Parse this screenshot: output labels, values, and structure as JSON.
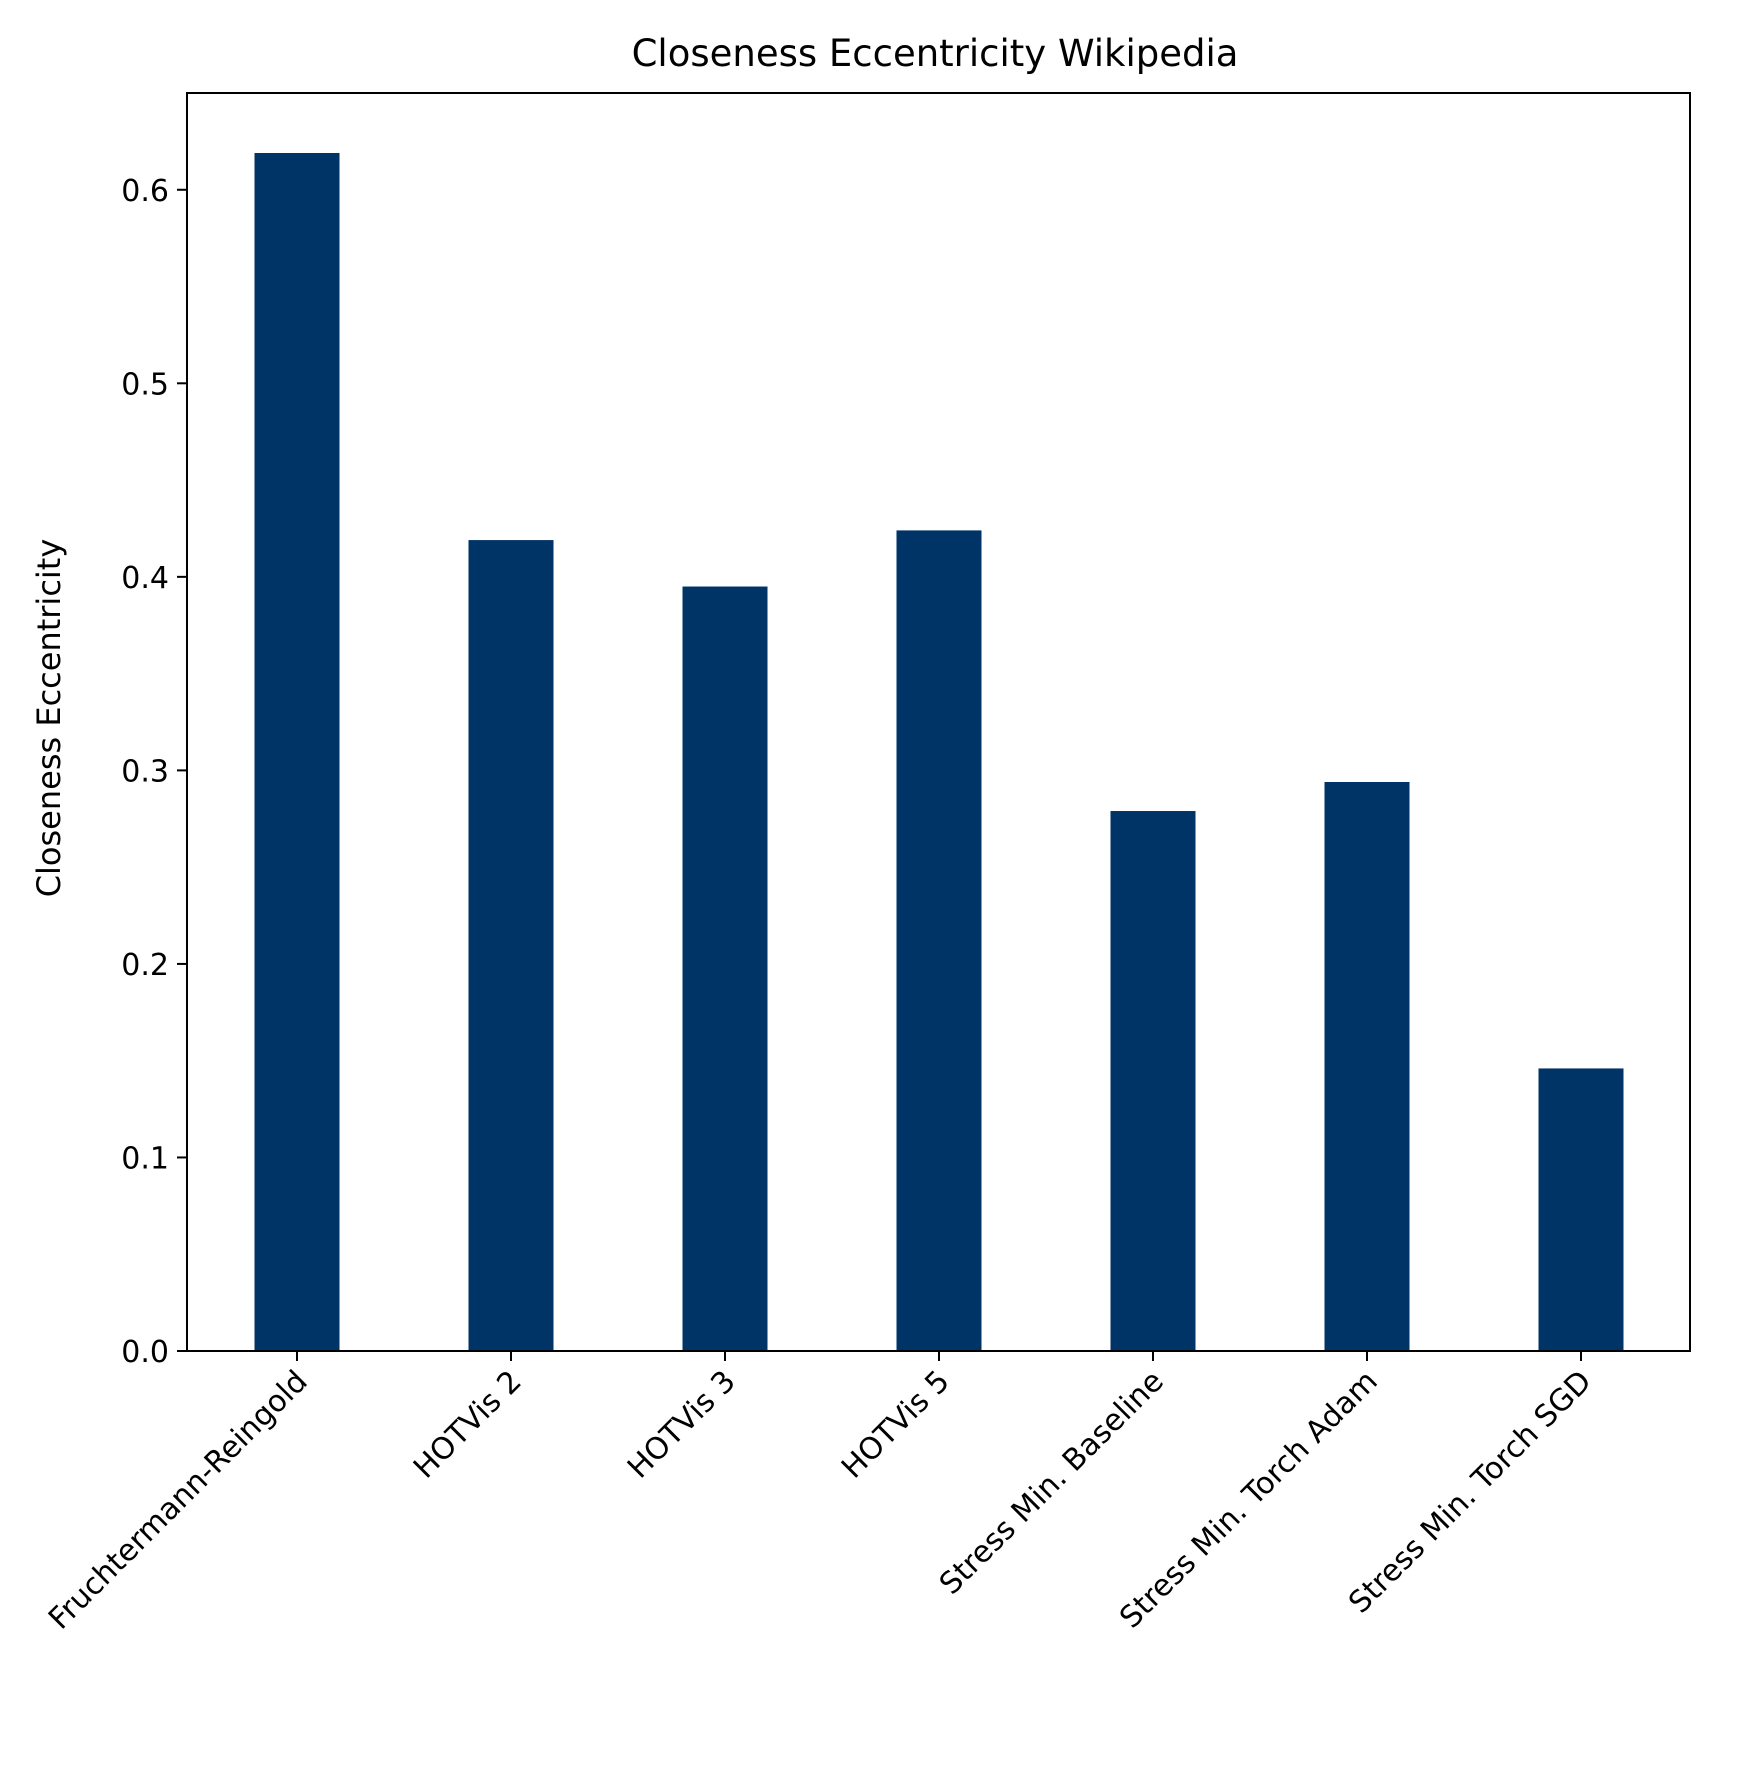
{
  "chart_data": {
    "type": "bar",
    "title": "Closeness Eccentricity Wikipedia",
    "xlabel": "",
    "ylabel": "Closeness Eccentricity",
    "categories": [
      "Fruchtermann-Reingold",
      "HOTVis 2",
      "HOTVis 3",
      "HOTVis 5",
      "Stress Min. Baseline",
      "Stress Min. Torch Adam",
      "Stress Min. Torch SGD"
    ],
    "values": [
      0.619,
      0.419,
      0.395,
      0.424,
      0.279,
      0.294,
      0.146
    ],
    "ylim": [
      0,
      0.65
    ],
    "yticks": [
      0.0,
      0.1,
      0.2,
      0.3,
      0.4,
      0.5,
      0.6
    ],
    "ytick_labels": [
      "0.0",
      "0.1",
      "0.2",
      "0.3",
      "0.4",
      "0.5",
      "0.6"
    ],
    "grid": false,
    "legend": "none",
    "bar_color": "#003366"
  }
}
